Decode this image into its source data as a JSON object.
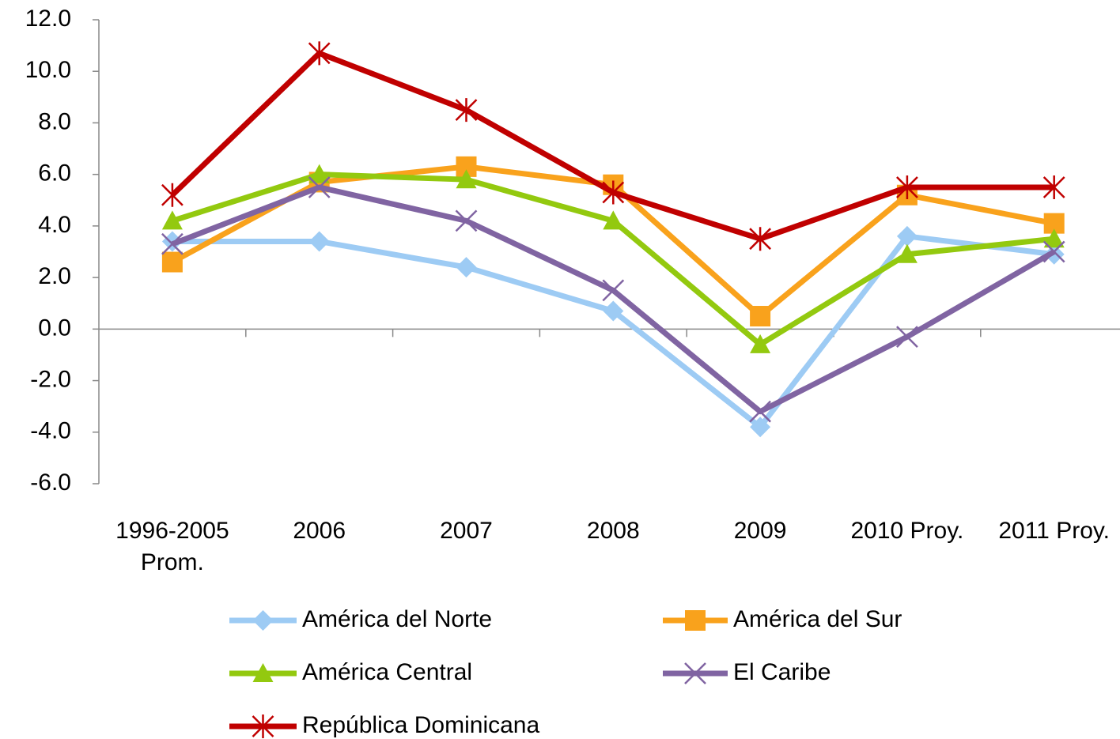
{
  "chart_data": {
    "type": "line",
    "categories": [
      "1996-2005\nProm.",
      "2006",
      "2007",
      "2008",
      "2009",
      "2010 Proy.",
      "2011 Proy."
    ],
    "series": [
      {
        "name": "América del Norte",
        "color": "#9dcbf4",
        "marker": "diamond",
        "values": [
          3.4,
          3.4,
          2.4,
          0.7,
          -3.8,
          3.6,
          2.9
        ]
      },
      {
        "name": "América del Sur",
        "color": "#f9a21c",
        "marker": "square",
        "values": [
          2.6,
          5.7,
          6.3,
          5.6,
          0.5,
          5.2,
          4.1
        ]
      },
      {
        "name": "América Central",
        "color": "#93c90f",
        "marker": "triangle",
        "values": [
          4.2,
          6.0,
          5.8,
          4.2,
          -0.6,
          2.9,
          3.5
        ]
      },
      {
        "name": "El Caribe",
        "color": "#8064a2",
        "marker": "x",
        "values": [
          3.3,
          5.5,
          4.2,
          1.5,
          -3.2,
          -0.3,
          3.0
        ]
      },
      {
        "name": "República Dominicana",
        "color": "#c00000",
        "marker": "star",
        "values": [
          5.2,
          10.7,
          8.5,
          5.3,
          3.5,
          5.5,
          5.5
        ]
      }
    ],
    "ylim": [
      -6,
      12
    ],
    "yticks": [
      {
        "value": -6,
        "label": "-6.0"
      },
      {
        "value": -4,
        "label": "-4.0"
      },
      {
        "value": -2,
        "label": "-2.0"
      },
      {
        "value": 0,
        "label": "0.0"
      },
      {
        "value": 2,
        "label": "2.0"
      },
      {
        "value": 4,
        "label": "4.0"
      },
      {
        "value": 6,
        "label": "6.0"
      },
      {
        "value": 8,
        "label": "8.0"
      },
      {
        "value": 10,
        "label": "10.0"
      },
      {
        "value": 12,
        "label": "12.0"
      }
    ],
    "grid": false,
    "legend": "bottom"
  }
}
